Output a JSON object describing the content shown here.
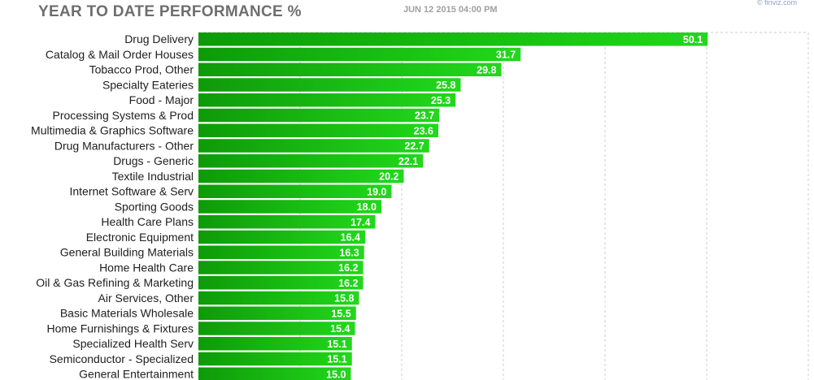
{
  "header": {
    "title": "YEAR TO DATE PERFORMANCE %",
    "timestamp": "JUN 12 2015 04:00 PM",
    "credit": "© finviz.com"
  },
  "colors": {
    "bar_light": "#22d81c",
    "bar_dark": "#0e9a08",
    "value_label": "#ffffff",
    "category_label": "#202020",
    "grid": "#cccccc"
  },
  "chart_data": {
    "type": "bar",
    "orientation": "horizontal",
    "title": "YEAR TO DATE PERFORMANCE %",
    "xlabel": "",
    "ylabel": "",
    "xlim": [
      0,
      60
    ],
    "grid": true,
    "categories": [
      "Drug Delivery",
      "Catalog & Mail Order Houses",
      "Tobacco Prod, Other",
      "Specialty Eateries",
      "Food - Major",
      "Processing Systems & Prod",
      "Multimedia & Graphics Software",
      "Drug Manufacturers - Other",
      "Drugs - Generic",
      "Textile Industrial",
      "Internet Software & Serv",
      "Sporting Goods",
      "Health Care Plans",
      "Electronic Equipment",
      "General Building Materials",
      "Home Health Care",
      "Oil & Gas Refining & Marketing",
      "Air Services, Other",
      "Basic Materials Wholesale",
      "Home Furnishings & Fixtures",
      "Specialized Health Serv",
      "Semiconductor - Specialized",
      "General Entertainment"
    ],
    "values": [
      50.1,
      31.7,
      29.8,
      25.8,
      25.3,
      23.7,
      23.6,
      22.7,
      22.1,
      20.2,
      19.0,
      18.0,
      17.4,
      16.4,
      16.3,
      16.2,
      16.2,
      15.8,
      15.5,
      15.4,
      15.1,
      15.1,
      15.0
    ],
    "value_labels": [
      "50.1",
      "31.7",
      "29.8",
      "25.8",
      "25.3",
      "23.7",
      "23.6",
      "22.7",
      "22.1",
      "20.2",
      "19.0",
      "18.0",
      "17.4",
      "16.4",
      "16.3",
      "16.2",
      "16.2",
      "15.8",
      "15.5",
      "15.4",
      "15.1",
      "15.1",
      "15.0"
    ]
  }
}
